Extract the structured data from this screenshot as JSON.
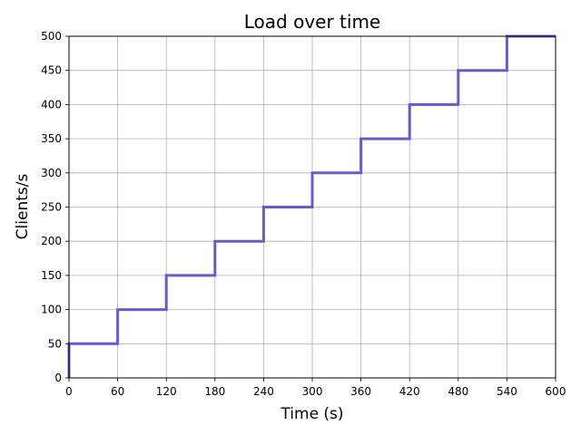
{
  "chart_data": {
    "type": "line",
    "step": "post",
    "title": "Load over time",
    "xlabel": "Time (s)",
    "ylabel": "Clients/s",
    "xlim": [
      0,
      600
    ],
    "ylim": [
      0,
      500
    ],
    "grid": true,
    "xticks": [
      0,
      60,
      120,
      180,
      240,
      300,
      360,
      420,
      480,
      540,
      600
    ],
    "yticks": [
      0,
      50,
      100,
      150,
      200,
      250,
      300,
      350,
      400,
      450,
      500
    ],
    "color": "#6a5acd",
    "series": [
      {
        "x": [
          0,
          0,
          60,
          120,
          180,
          240,
          300,
          360,
          420,
          480,
          540,
          600
        ],
        "y": [
          0,
          50,
          100,
          150,
          200,
          250,
          300,
          350,
          400,
          450,
          500,
          500
        ]
      }
    ]
  }
}
